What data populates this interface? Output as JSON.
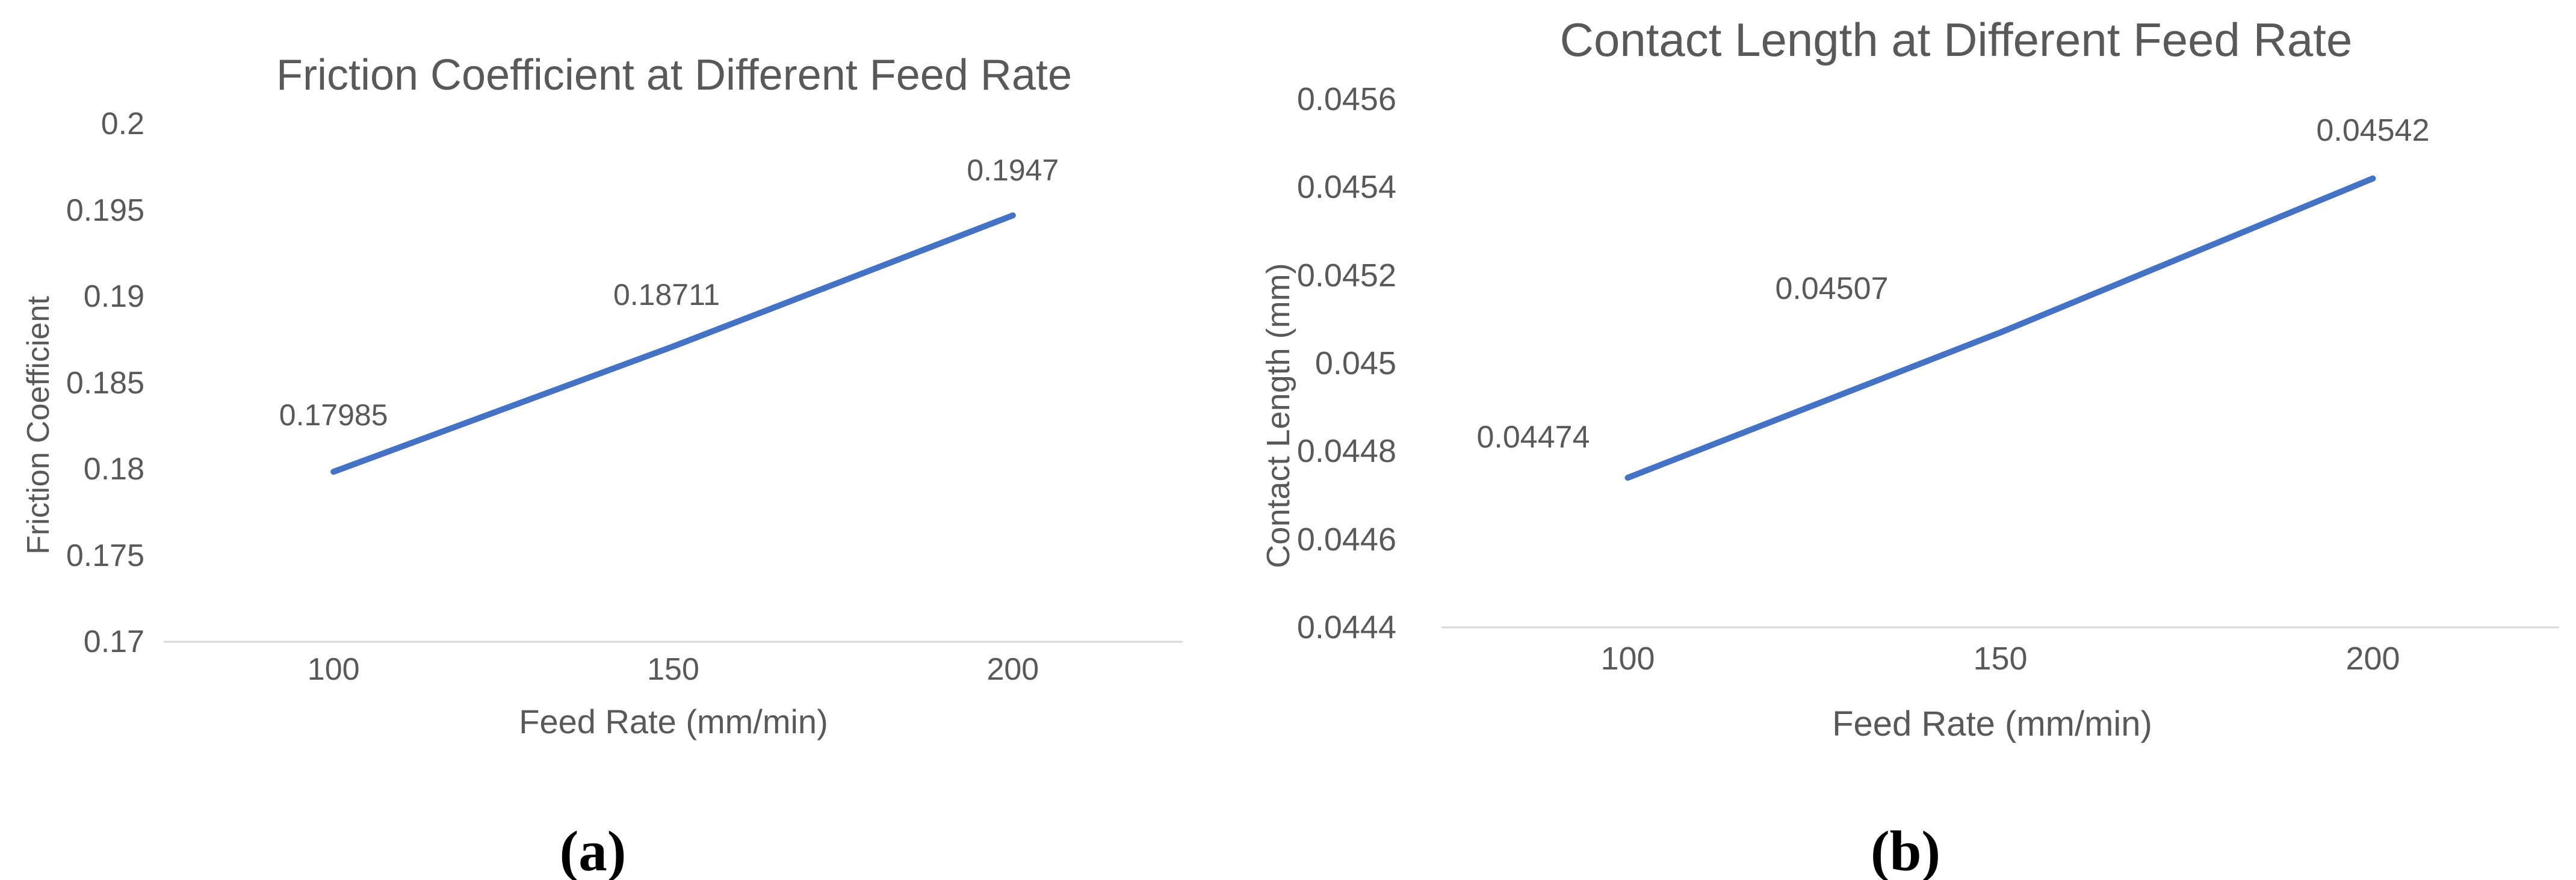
{
  "colors": {
    "series_line": "#4472C4",
    "axis_line": "#D9D9D9",
    "chart_text": "#595959",
    "caption_text": "#000000"
  },
  "captions": {
    "a": "(a)",
    "b": "(b)"
  },
  "chart_data": [
    {
      "type": "line",
      "title": "Friction Coefficient at Different Feed Rate",
      "xlabel": "Feed Rate (mm/min)",
      "ylabel": "Friction Coefficient",
      "categories": [
        "100",
        "150",
        "200"
      ],
      "values": [
        0.17985,
        0.18711,
        0.1947
      ],
      "data_labels": [
        "0.17985",
        "0.18711",
        "0.1947"
      ],
      "yticks": [
        "0.2",
        "0.195",
        "0.19",
        "0.185",
        "0.18",
        "0.175",
        "0.17"
      ],
      "ylim": [
        0.17,
        0.2
      ],
      "grid": false,
      "legend": "none",
      "caption": "(a)"
    },
    {
      "type": "line",
      "title": "Contact Length at Different Feed Rate",
      "xlabel": "Feed Rate (mm/min)",
      "ylabel": "Contact Length (mm)",
      "categories": [
        "100",
        "150",
        "200"
      ],
      "values": [
        0.04474,
        0.04507,
        0.04542
      ],
      "data_labels": [
        "0.04474",
        "0.04507",
        "0.04542"
      ],
      "yticks": [
        "0.0456",
        "0.0454",
        "0.0452",
        "0.045",
        "0.0448",
        "0.0446",
        "0.0444"
      ],
      "ylim": [
        0.0444,
        0.0456
      ],
      "grid": false,
      "legend": "none",
      "caption": "(b)"
    }
  ]
}
